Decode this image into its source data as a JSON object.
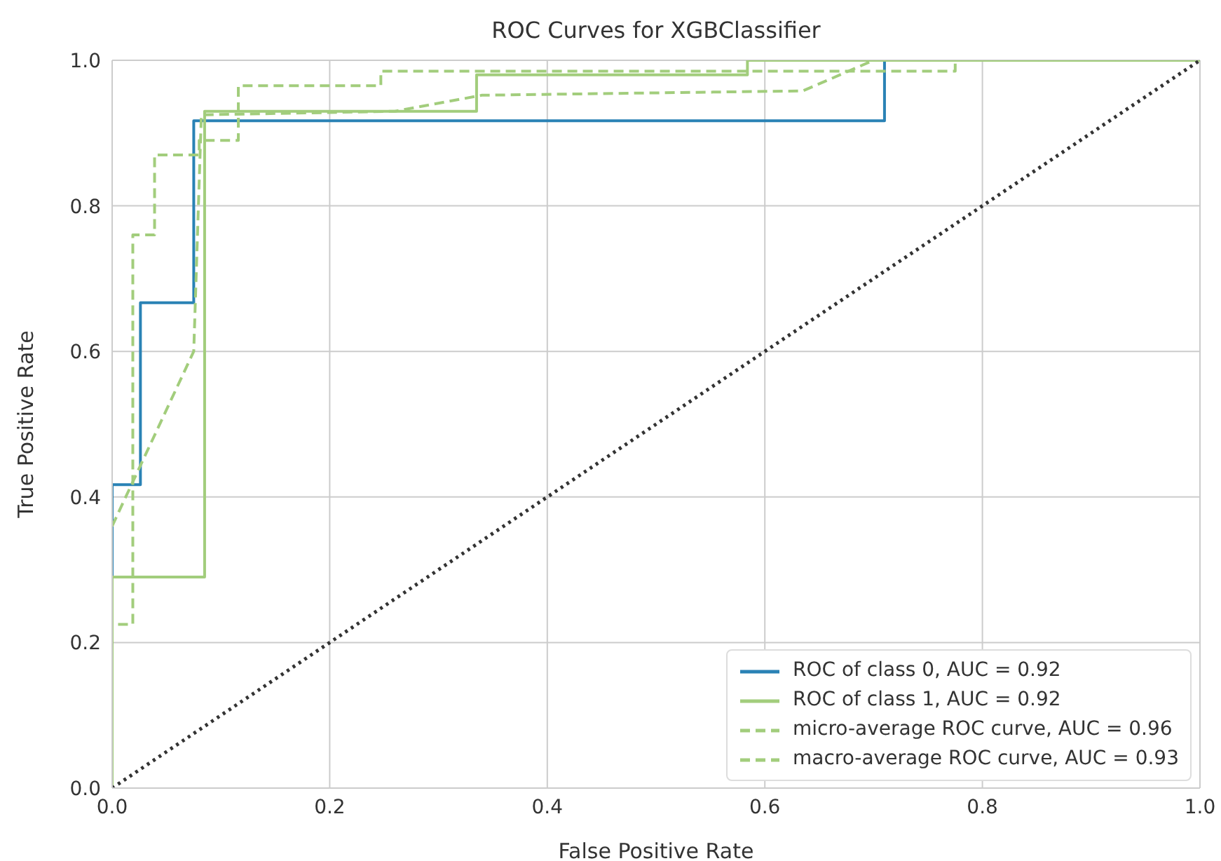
{
  "chart_data": {
    "type": "line",
    "title": "ROC Curves for XGBClassifier",
    "xlabel": "False Positive Rate",
    "ylabel": "True Positive Rate",
    "xlim": [
      0,
      1
    ],
    "ylim": [
      0,
      1
    ],
    "xticks": [
      {
        "value": 0,
        "label": "0.0"
      },
      0.2,
      0.4,
      0.6,
      0.8,
      {
        "value": 1,
        "label": "1.0"
      }
    ],
    "yticks": [
      {
        "value": 0,
        "label": "0.0"
      },
      0.2,
      0.4,
      0.6,
      0.8,
      {
        "value": 1,
        "label": "1.0"
      }
    ],
    "grid": true,
    "legend": "bottom right",
    "marker": "none",
    "series": [
      {
        "name": "ROC of class 0, AUC = 0.92",
        "color": "#2a82b5",
        "line_style": "solid",
        "x": [
          0,
          0,
          0.026,
          0.026,
          0.075,
          0.075,
          0.71,
          0.71,
          1
        ],
        "values": [
          0,
          0.417,
          0.417,
          0.667,
          0.667,
          0.917,
          0.917,
          1,
          1
        ]
      },
      {
        "name": "ROC of class 1, AUC = 0.92",
        "color": "#a2cd7c",
        "line_style": "solid",
        "x": [
          0,
          0,
          0.085,
          0.085,
          0.335,
          0.335,
          0.584,
          0.584,
          1
        ],
        "values": [
          0,
          0.29,
          0.29,
          0.93,
          0.93,
          0.98,
          0.98,
          1,
          1
        ]
      },
      {
        "name": "micro-average ROC curve, AUC = 0.96",
        "color": "#a2cd7c",
        "line_style": "dashed",
        "x": [
          0,
          0,
          0.019,
          0.019,
          0.039,
          0.039,
          0.08,
          0.08,
          0.116,
          0.116,
          0.247,
          0.247,
          0.775,
          0.775,
          1
        ],
        "values": [
          0,
          0.225,
          0.225,
          0.76,
          0.76,
          0.87,
          0.87,
          0.89,
          0.89,
          0.965,
          0.965,
          0.985,
          0.985,
          1,
          1
        ]
      },
      {
        "name": "macro-average ROC curve, AUC = 0.93",
        "color": "#a2cd7c",
        "line_style": "dashed",
        "x": [
          0,
          0.075,
          0.082,
          0.26,
          0.34,
          0.635,
          0.7,
          1
        ],
        "values": [
          0.36,
          0.6,
          0.925,
          0.93,
          0.952,
          0.958,
          1,
          1
        ]
      },
      {
        "color": "#333333",
        "line_style": "dotted",
        "x": [
          0,
          1
        ],
        "values": [
          0,
          1
        ]
      }
    ]
  }
}
